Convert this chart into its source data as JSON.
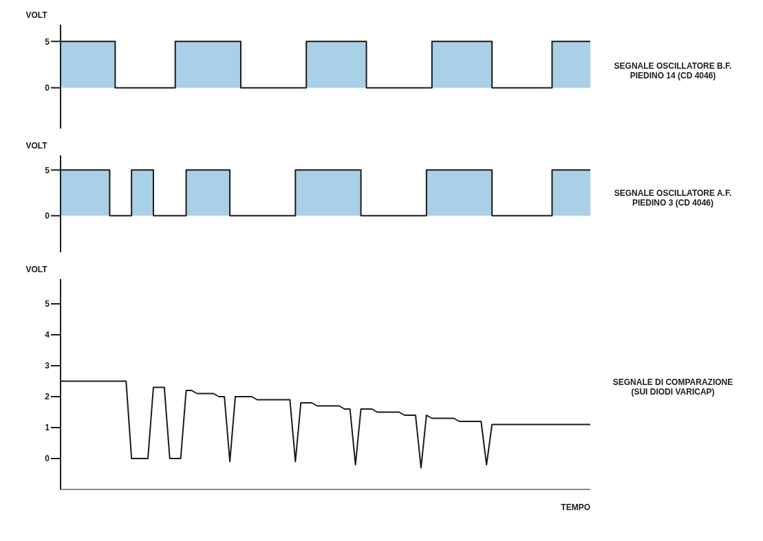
{
  "chart_data": [
    {
      "type": "step",
      "ylabel": "VOLT",
      "ylim": [
        -4.4,
        6.8
      ],
      "yticks": [
        0,
        5
      ],
      "tick_labels": "y",
      "categories": [
        null,
        null,
        null,
        null,
        null,
        null,
        null,
        null,
        null,
        null,
        null,
        null,
        null,
        null,
        null,
        null,
        null,
        null,
        null,
        null,
        null,
        null,
        null,
        null,
        null,
        null,
        null,
        null,
        null,
        null,
        null,
        null,
        null,
        null,
        null,
        null,
        null,
        null,
        null,
        null,
        null,
        null,
        null,
        null,
        null,
        null,
        null,
        null,
        null,
        null,
        null,
        null,
        null,
        null,
        null,
        null,
        null,
        null,
        null,
        null,
        null,
        null,
        null,
        null,
        null,
        null,
        null,
        null,
        null,
        null,
        null,
        null,
        null,
        null,
        null,
        null,
        null,
        null,
        null,
        null,
        null,
        null,
        null,
        null,
        null,
        null,
        null,
        null,
        null,
        null,
        null,
        null,
        null,
        null,
        null,
        null,
        null,
        null
      ],
      "series": [
        {
          "name": "SEGNALE OSCILLATORE B.F.\nPIEDINO 14 (CD 4046)",
          "color": "#1a1a1a",
          "values": [
            5,
            5,
            5,
            5,
            5,
            5,
            5,
            5,
            5,
            5,
            0,
            0,
            0,
            0,
            0,
            0,
            0,
            0,
            0,
            0,
            0,
            5,
            5,
            5,
            5,
            5,
            5,
            5,
            5,
            5,
            5,
            5,
            5,
            0,
            0,
            0,
            0,
            0,
            0,
            0,
            0,
            0,
            0,
            0,
            0,
            5,
            5,
            5,
            5,
            5,
            5,
            5,
            5,
            5,
            5,
            5,
            0,
            0,
            0,
            0,
            0,
            0,
            0,
            0,
            0,
            0,
            0,
            0,
            5,
            5,
            5,
            5,
            5,
            5,
            5,
            5,
            5,
            5,
            5,
            0,
            0,
            0,
            0,
            0,
            0,
            0,
            0,
            0,
            0,
            0,
            5,
            5,
            5,
            5,
            5,
            5,
            5,
            5
          ]
        }
      ]
    },
    {
      "type": "step",
      "ylabel": "VOLT",
      "ylim": [
        -4,
        6.6
      ],
      "yticks": [
        0,
        5
      ],
      "tick_labels": "y",
      "categories": [
        null,
        null,
        null,
        null,
        null,
        null,
        null,
        null,
        null,
        null,
        null,
        null,
        null,
        null,
        null,
        null,
        null,
        null,
        null,
        null,
        null,
        null,
        null,
        null,
        null,
        null,
        null,
        null,
        null,
        null,
        null,
        null,
        null,
        null,
        null,
        null,
        null,
        null,
        null,
        null,
        null,
        null,
        null,
        null,
        null,
        null,
        null,
        null,
        null,
        null,
        null,
        null,
        null,
        null,
        null,
        null,
        null,
        null,
        null,
        null,
        null,
        null,
        null,
        null,
        null,
        null,
        null,
        null,
        null,
        null,
        null,
        null,
        null,
        null,
        null,
        null,
        null,
        null,
        null,
        null,
        null,
        null,
        null,
        null,
        null,
        null,
        null,
        null,
        null,
        null,
        null,
        null,
        null,
        null,
        null,
        null,
        null,
        null
      ],
      "series": [
        {
          "name": "SEGNALE OSCILLATORE A.F.\nPIEDINO 3 (CD 4046)",
          "color": "#1a1a1a",
          "values": [
            5,
            5,
            5,
            5,
            5,
            5,
            5,
            5,
            5,
            0,
            0,
            0,
            0,
            5,
            5,
            5,
            5,
            0,
            0,
            0,
            0,
            0,
            0,
            5,
            5,
            5,
            5,
            5,
            5,
            5,
            5,
            0,
            0,
            0,
            0,
            0,
            0,
            0,
            0,
            0,
            0,
            0,
            0,
            5,
            5,
            5,
            5,
            5,
            5,
            5,
            5,
            5,
            5,
            5,
            5,
            0,
            0,
            0,
            0,
            0,
            0,
            0,
            0,
            0,
            0,
            0,
            0,
            5,
            5,
            5,
            5,
            5,
            5,
            5,
            5,
            5,
            5,
            5,
            5,
            0,
            0,
            0,
            0,
            0,
            0,
            0,
            0,
            0,
            0,
            0,
            5,
            5,
            5,
            5,
            5,
            5,
            5,
            5
          ]
        }
      ]
    },
    {
      "type": "line",
      "ylabel": "VOLT",
      "xlabel": "TEMPO",
      "ylim": [
        -1,
        5.8
      ],
      "yticks": [
        0,
        1,
        2,
        3,
        4,
        5
      ],
      "tick_labels": "y",
      "categories": [
        null,
        null,
        null,
        null,
        null,
        null,
        null,
        null,
        null,
        null,
        null,
        null,
        null,
        null,
        null,
        null,
        null,
        null,
        null,
        null,
        null,
        null,
        null,
        null,
        null,
        null,
        null,
        null,
        null,
        null,
        null,
        null,
        null,
        null,
        null,
        null,
        null,
        null,
        null,
        null,
        null,
        null,
        null,
        null,
        null,
        null,
        null,
        null,
        null,
        null,
        null,
        null,
        null,
        null,
        null,
        null,
        null,
        null,
        null,
        null,
        null,
        null,
        null,
        null,
        null,
        null,
        null,
        null,
        null,
        null,
        null,
        null,
        null,
        null,
        null,
        null,
        null,
        null,
        null,
        null,
        null,
        null,
        null,
        null,
        null,
        null,
        null,
        null,
        null,
        null,
        null,
        null,
        null,
        null,
        null,
        null,
        null,
        null
      ],
      "series": [
        {
          "name": "SEGNALE DI COMPARAZIONE\n(SUI DIODI VARICAP)",
          "color": "#1a1a1a",
          "values": [
            2.5,
            2.5,
            2.5,
            2.5,
            2.5,
            2.5,
            2.5,
            2.5,
            2.5,
            2.5,
            2.5,
            2.5,
            2.5,
            0,
            0,
            0,
            0,
            2.3,
            2.3,
            2.3,
            0,
            0,
            0,
            2.2,
            2.2,
            2.1,
            2.1,
            2.1,
            2.1,
            2.0,
            2.0,
            -0.1,
            2.0,
            2.0,
            2.0,
            2.0,
            1.9,
            1.9,
            1.9,
            1.9,
            1.9,
            1.9,
            1.9,
            -0.1,
            1.8,
            1.8,
            1.8,
            1.7,
            1.7,
            1.7,
            1.7,
            1.7,
            1.6,
            1.6,
            -0.2,
            1.6,
            1.6,
            1.6,
            1.5,
            1.5,
            1.5,
            1.5,
            1.5,
            1.4,
            1.4,
            1.4,
            -0.3,
            1.4,
            1.3,
            1.3,
            1.3,
            1.3,
            1.3,
            1.2,
            1.2,
            1.2,
            1.2,
            1.2,
            -0.2,
            1.1,
            1.1,
            1.1,
            1.1,
            1.1,
            1.1,
            1.1,
            1.1,
            1.1,
            1.1,
            1.1,
            1.1,
            1.1,
            1.1,
            1.1,
            1.1,
            1.1,
            1.1,
            1.1
          ]
        }
      ]
    }
  ]
}
